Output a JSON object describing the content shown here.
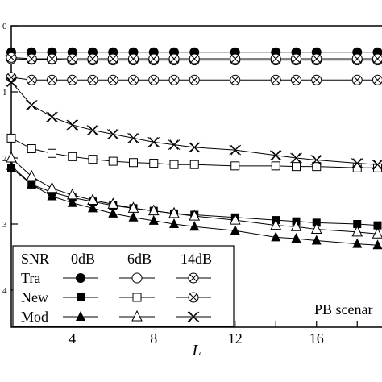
{
  "chart_data": {
    "type": "line",
    "xlabel": "L",
    "ylabel": "",
    "xlim": [
      1,
      19
    ],
    "ylim_exponent": [
      -4.5,
      0
    ],
    "y_scale": "log",
    "x_ticks": [
      4,
      8,
      12,
      16
    ],
    "x_tick_labels": [
      "4",
      "8",
      "12",
      "16"
    ],
    "y_ticks_exponent": [
      0,
      -1,
      -2,
      -3,
      -4
    ],
    "y_tick_labels": [
      "0",
      "1",
      "2",
      "3",
      "4"
    ],
    "annotation": "PB scenar",
    "legend": {
      "position": "bottom-left",
      "header": [
        "SNR",
        "0dB",
        "6dB",
        "14dB"
      ],
      "rows": [
        "Tra",
        "New",
        "Mod"
      ]
    },
    "series": [
      {
        "name": "Tra 0dB",
        "marker": "circle-filled",
        "x": [
          1,
          2,
          3,
          4,
          5,
          6,
          7,
          8,
          9,
          10,
          12,
          14,
          15,
          16,
          18,
          19
        ],
        "log10_y": [
          -0.4,
          -0.4,
          -0.4,
          -0.4,
          -0.4,
          -0.4,
          -0.4,
          -0.4,
          -0.4,
          -0.4,
          -0.4,
          -0.4,
          -0.4,
          -0.4,
          -0.4,
          -0.4
        ]
      },
      {
        "name": "Tra 6dB",
        "marker": "circle-open",
        "x": [
          1,
          2,
          3,
          4,
          5,
          6,
          7,
          8,
          9,
          10,
          12,
          14,
          15,
          16,
          18,
          19
        ],
        "log10_y": [
          -0.5,
          -0.51,
          -0.51,
          -0.52,
          -0.52,
          -0.52,
          -0.52,
          -0.52,
          -0.52,
          -0.52,
          -0.52,
          -0.52,
          -0.52,
          -0.52,
          -0.52,
          -0.52
        ]
      },
      {
        "name": "Tra 14dB",
        "marker": "square-cross",
        "x": [
          1,
          2,
          3,
          4,
          5,
          6,
          7,
          8,
          9,
          10,
          12,
          14,
          15,
          16,
          18,
          19
        ],
        "log10_y": [
          -0.48,
          -0.5,
          -0.5,
          -0.5,
          -0.5,
          -0.5,
          -0.5,
          -0.5,
          -0.5,
          -0.5,
          -0.5,
          -0.5,
          -0.5,
          -0.5,
          -0.5,
          -0.5
        ]
      },
      {
        "name": "New 0dB",
        "marker": "square-filled",
        "x": [
          1,
          2,
          3,
          4,
          5,
          6,
          7,
          8,
          9,
          10,
          12,
          14,
          15,
          16,
          18,
          19
        ],
        "log10_y": [
          -2.15,
          -2.4,
          -2.52,
          -2.6,
          -2.66,
          -2.72,
          -2.76,
          -2.8,
          -2.84,
          -2.86,
          -2.9,
          -2.94,
          -2.96,
          -2.98,
          -3.0,
          -3.02
        ]
      },
      {
        "name": "New 6dB",
        "marker": "square-open",
        "x": [
          1,
          2,
          3,
          4,
          5,
          6,
          7,
          8,
          9,
          10,
          12,
          14,
          15,
          16,
          18,
          19
        ],
        "log10_y": [
          -1.7,
          -1.86,
          -1.93,
          -1.98,
          -2.02,
          -2.05,
          -2.07,
          -2.08,
          -2.1,
          -2.1,
          -2.12,
          -2.12,
          -2.13,
          -2.13,
          -2.15,
          -2.15
        ]
      },
      {
        "name": "New 14dB",
        "marker": "square-x",
        "x": [
          1,
          2,
          3,
          4,
          5,
          6,
          7,
          8,
          9,
          10,
          12,
          14,
          15,
          16,
          18,
          19
        ],
        "log10_y": [
          -0.78,
          -0.82,
          -0.82,
          -0.82,
          -0.82,
          -0.82,
          -0.82,
          -0.82,
          -0.82,
          -0.82,
          -0.82,
          -0.82,
          -0.82,
          -0.82,
          -0.82,
          -0.82
        ]
      },
      {
        "name": "Mod 0dB",
        "marker": "triangle-filled",
        "x": [
          1,
          2,
          3,
          4,
          5,
          6,
          7,
          8,
          9,
          10,
          12,
          14,
          15,
          16,
          18,
          19
        ],
        "log10_y": [
          -2.12,
          -2.4,
          -2.58,
          -2.68,
          -2.76,
          -2.84,
          -2.9,
          -2.95,
          -3.0,
          -3.04,
          -3.1,
          -3.2,
          -3.22,
          -3.25,
          -3.3,
          -3.32
        ]
      },
      {
        "name": "Mod 6dB",
        "marker": "triangle-open",
        "x": [
          1,
          2,
          3,
          4,
          5,
          6,
          7,
          8,
          9,
          10,
          12,
          14,
          15,
          16,
          18,
          19
        ],
        "log10_y": [
          -2.0,
          -2.28,
          -2.46,
          -2.56,
          -2.64,
          -2.7,
          -2.76,
          -2.8,
          -2.84,
          -2.88,
          -2.94,
          -3.02,
          -3.04,
          -3.08,
          -3.12,
          -3.15
        ]
      },
      {
        "name": "Mod 14dB",
        "marker": "x-open",
        "x": [
          1,
          2,
          3,
          4,
          5,
          6,
          7,
          8,
          9,
          10,
          12,
          14,
          15,
          16,
          18,
          19
        ],
        "log10_y": [
          -0.85,
          -1.2,
          -1.38,
          -1.5,
          -1.58,
          -1.64,
          -1.7,
          -1.76,
          -1.8,
          -1.84,
          -1.88,
          -1.96,
          -2.0,
          -2.03,
          -2.08,
          -2.1
        ]
      }
    ]
  }
}
